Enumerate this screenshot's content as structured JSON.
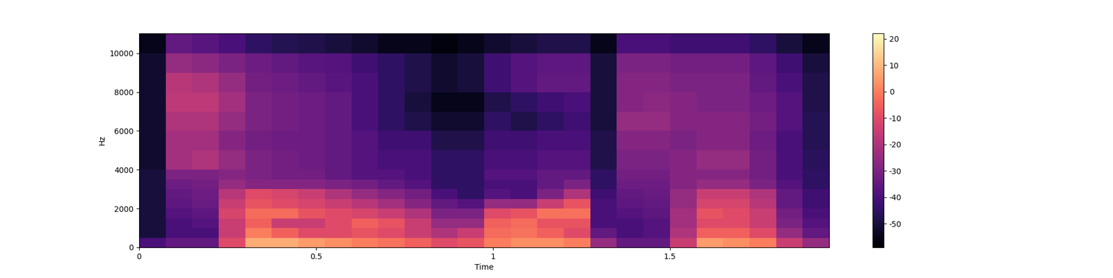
{
  "chart_data": {
    "type": "spectrogram",
    "x_label": "Time",
    "y_label": "Hz",
    "xlim": [
      0,
      1.95
    ],
    "xticks": [
      0,
      0.5,
      1,
      1.5
    ],
    "ylim": [
      0,
      11025
    ],
    "yticks": [
      0,
      2000,
      4000,
      6000,
      8000,
      10000
    ],
    "color": "magma",
    "time_edges": [
      0,
      0.075,
      0.15,
      0.225,
      0.3,
      0.375,
      0.45,
      0.525,
      0.6,
      0.675,
      0.75,
      0.825,
      0.9,
      0.975,
      1.05,
      1.125,
      1.2,
      1.275,
      1.35,
      1.425,
      1.5,
      1.575,
      1.65,
      1.725,
      1.8,
      1.875,
      1.95
    ],
    "freq_edges": [
      0,
      500,
      1000,
      1500,
      2000,
      2500,
      3000,
      3500,
      4000,
      5000,
      6000,
      7000,
      8000,
      9000,
      10000,
      11025
    ],
    "cells": [
      [
        -40,
        -35,
        -35,
        -10,
        8,
        8,
        5,
        3,
        0,
        -2,
        -5,
        -10,
        -8,
        0,
        3,
        3,
        0,
        -25,
        -35,
        -35,
        -15,
        5,
        3,
        0,
        -15,
        -25
      ],
      [
        -50,
        -40,
        -40,
        -15,
        0,
        -5,
        -10,
        -10,
        -8,
        -10,
        -15,
        -20,
        -15,
        -3,
        -2,
        -5,
        -10,
        -35,
        -40,
        -38,
        -20,
        -5,
        -5,
        -10,
        -25,
        -35
      ],
      [
        -50,
        -40,
        -38,
        -15,
        -5,
        -15,
        -15,
        -10,
        -5,
        -8,
        -15,
        -25,
        -25,
        -5,
        -3,
        -8,
        -8,
        -40,
        -40,
        -38,
        -22,
        -10,
        -10,
        -15,
        -30,
        -38
      ],
      [
        -50,
        -38,
        -36,
        -12,
        -3,
        -3,
        -8,
        -10,
        -12,
        -15,
        -20,
        -30,
        -30,
        -10,
        -8,
        -2,
        -2,
        -40,
        -38,
        -36,
        -22,
        -8,
        -10,
        -15,
        -32,
        -40
      ],
      [
        -50,
        -36,
        -34,
        -15,
        -8,
        -10,
        -12,
        -15,
        -18,
        -22,
        -28,
        -35,
        -38,
        -25,
        -25,
        -15,
        -8,
        -40,
        -36,
        -35,
        -25,
        -12,
        -12,
        -18,
        -35,
        -42
      ],
      [
        -50,
        -35,
        -33,
        -18,
        -10,
        -12,
        -15,
        -20,
        -25,
        -28,
        -32,
        -40,
        -45,
        -38,
        -40,
        -30,
        -20,
        -42,
        -35,
        -34,
        -25,
        -15,
        -15,
        -20,
        -35,
        -42
      ],
      [
        -50,
        -33,
        -32,
        -25,
        -28,
        -28,
        -28,
        -30,
        -32,
        -35,
        -38,
        -45,
        -45,
        -40,
        -40,
        -35,
        -30,
        -45,
        -33,
        -33,
        -28,
        -25,
        -25,
        -30,
        -38,
        -45
      ],
      [
        -50,
        -30,
        -30,
        -28,
        -30,
        -32,
        -32,
        -35,
        -38,
        -38,
        -40,
        -45,
        -45,
        -38,
        -38,
        -35,
        -35,
        -45,
        -32,
        -32,
        -28,
        -28,
        -28,
        -32,
        -40,
        -45
      ],
      [
        -52,
        -22,
        -20,
        -25,
        -30,
        -32,
        -33,
        -35,
        -38,
        -40,
        -40,
        -45,
        -45,
        -40,
        -40,
        -38,
        -38,
        -48,
        -30,
        -30,
        -28,
        -25,
        -25,
        -32,
        -40,
        -46
      ],
      [
        -52,
        -22,
        -22,
        -28,
        -32,
        -33,
        -33,
        -35,
        -38,
        -42,
        -42,
        -48,
        -48,
        -42,
        -42,
        -40,
        -40,
        -48,
        -28,
        -28,
        -30,
        -28,
        -28,
        -33,
        -40,
        -47
      ],
      [
        -52,
        -20,
        -20,
        -25,
        -30,
        -32,
        -33,
        -35,
        -40,
        -45,
        -48,
        -52,
        -52,
        -45,
        -48,
        -45,
        -42,
        -50,
        -25,
        -25,
        -28,
        -28,
        -28,
        -32,
        -38,
        -47
      ],
      [
        -52,
        -17,
        -17,
        -22,
        -30,
        -32,
        -33,
        -35,
        -40,
        -45,
        -50,
        -55,
        -55,
        -48,
        -45,
        -42,
        -40,
        -50,
        -28,
        -27,
        -28,
        -30,
        -30,
        -33,
        -38,
        -48
      ],
      [
        -52,
        -18,
        -20,
        -25,
        -32,
        -33,
        -35,
        -37,
        -40,
        -45,
        -48,
        -52,
        -50,
        -42,
        -38,
        -35,
        -35,
        -50,
        -28,
        -28,
        -30,
        -30,
        -30,
        -35,
        -40,
        -48
      ],
      [
        -52,
        -25,
        -27,
        -30,
        -33,
        -35,
        -37,
        -38,
        -42,
        -45,
        -48,
        -52,
        -50,
        -42,
        -38,
        -36,
        -36,
        -50,
        -30,
        -30,
        -32,
        -32,
        -32,
        -36,
        -42,
        -50
      ],
      [
        -55,
        -35,
        -37,
        -40,
        -45,
        -47,
        -48,
        -50,
        -52,
        -55,
        -55,
        -57,
        -55,
        -52,
        -50,
        -48,
        -48,
        -55,
        -40,
        -40,
        -42,
        -42,
        -42,
        -45,
        -50,
        -55
      ]
    ],
    "colorbar": {
      "range": [
        -59,
        22
      ],
      "ticks": [
        20,
        10,
        0,
        -10,
        -20,
        -30,
        -40,
        -50
      ]
    }
  }
}
